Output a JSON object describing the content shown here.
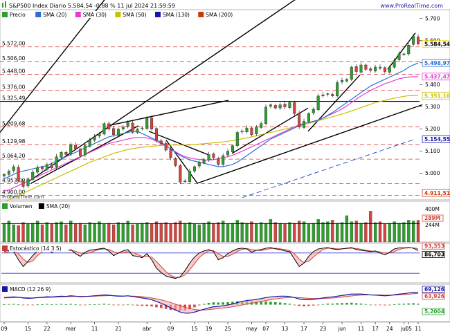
{
  "header": {
    "title": "S&P500 Index Diario 5.584,54 -0,88 % 11 jul 2024 21:59:59",
    "site": "www.ProRealTime.com"
  },
  "watermark": "ProRealTime.com",
  "chart_data": [
    {
      "type": "candlestick",
      "panel": "price",
      "legend": [
        {
          "name": "Precio",
          "color": "#2e9e2e"
        },
        {
          "name": "SMA (20)",
          "color": "#2b6fd6"
        },
        {
          "name": "SMA (30)",
          "color": "#e83ad2"
        },
        {
          "name": "SMA (50)",
          "color": "#c8c000"
        },
        {
          "name": "SMA (130)",
          "color": "#1616a8"
        },
        {
          "name": "SMA (200)",
          "color": "#c83a0a"
        }
      ],
      "ylim": [
        4880,
        5740
      ],
      "right_ticks": [
        5700,
        5600,
        5500,
        5400,
        5300,
        5200,
        5100,
        5000
      ],
      "right_tick_labels": [
        "5.700",
        "5.600",
        "5.500",
        "5.400",
        "5.300",
        "5.200",
        "5.100",
        "5.000"
      ],
      "left_levels": [
        {
          "value": 5572.0,
          "label": "5.572,00"
        },
        {
          "value": 5506.0,
          "label": "5.506,00"
        },
        {
          "value": 5448.0,
          "label": "5.448,00"
        },
        {
          "value": 5376.0,
          "label": "5.376,00"
        },
        {
          "value": 5325.49,
          "label": "5.325,49"
        },
        {
          "value": 5209.68,
          "label": "5.209,68"
        },
        {
          "value": 5129.98,
          "label": "5.129,98"
        },
        {
          "value": 5064.2,
          "label": "5.064,20"
        },
        {
          "value": 4953.0,
          "label": "4.953,00"
        },
        {
          "value": 4900.0,
          "label": "4.900,00"
        }
      ],
      "badges": [
        {
          "value": 5584.54,
          "label": "5.584,54",
          "color": "#f5d200"
        },
        {
          "value": 5498.97,
          "label": "5.498,97",
          "color": "#2b6fd6"
        },
        {
          "value": 5437.47,
          "label": "5.437,47",
          "color": "#e83ad2"
        },
        {
          "value": 5351.1,
          "label": "5.351,10",
          "color": "#c8c000"
        },
        {
          "value": 5154.55,
          "label": "5.154,55",
          "color": "#1616a8"
        },
        {
          "value": 4911.51,
          "label": "4.911,51",
          "color": "#c83a0a"
        }
      ],
      "close": [
        4995,
        5010,
        5030,
        4965,
        4940,
        4975,
        5005,
        5025,
        5020,
        5040,
        5025,
        5075,
        5095,
        5085,
        5130,
        5110,
        5080,
        5125,
        5150,
        5165,
        5180,
        5225,
        5200,
        5175,
        5200,
        5210,
        5230,
        5185,
        5200,
        5205,
        5250,
        5200,
        5150,
        5135,
        5105,
        5070,
        5035,
        4960,
        4965,
        5010,
        5030,
        5050,
        5060,
        5085,
        5070,
        5040,
        5080,
        5100,
        5125,
        5185,
        5190,
        5205,
        5175,
        5210,
        5225,
        5300,
        5310,
        5295,
        5310,
        5300,
        5320,
        5270,
        5210,
        5235,
        5270,
        5290,
        5350,
        5355,
        5360,
        5350,
        5410,
        5420,
        5425,
        5480,
        5460,
        5490,
        5470,
        5465,
        5480,
        5475,
        5460,
        5480,
        5510,
        5540,
        5540,
        5580,
        5620,
        5585
      ],
      "sma20": [
        4975,
        4985,
        4995,
        5005,
        5010,
        5015,
        5020,
        5025,
        5030,
        5035,
        5045,
        5055,
        5065,
        5075,
        5085,
        5095,
        5105,
        5115,
        5125,
        5135,
        5145,
        5155,
        5165,
        5170,
        5175,
        5180,
        5185,
        5190,
        5190,
        5180,
        5170,
        5160,
        5150,
        5140,
        5125,
        5110,
        5095,
        5080,
        5070,
        5060,
        5055,
        5050,
        5045,
        5040,
        5035,
        5030,
        5030,
        5035,
        5040,
        5050,
        5065,
        5080,
        5095,
        5110,
        5125,
        5140,
        5155,
        5165,
        5175,
        5185,
        5195,
        5205,
        5215,
        5225,
        5230,
        5235,
        5240,
        5250,
        5262,
        5275,
        5290,
        5305,
        5320,
        5335,
        5350,
        5365,
        5380,
        5395,
        5405,
        5415,
        5425,
        5435,
        5445,
        5455,
        5465,
        5480,
        5490,
        5499
      ],
      "sma30": [
        4920,
        4925,
        4935,
        4945,
        4955,
        4965,
        4975,
        4985,
        4995,
        5005,
        5015,
        5025,
        5035,
        5045,
        5055,
        5065,
        5075,
        5085,
        5095,
        5105,
        5115,
        5125,
        5135,
        5140,
        5145,
        5150,
        5155,
        5160,
        5162,
        5162,
        5160,
        5155,
        5145,
        5135,
        5125,
        5110,
        5098,
        5085,
        5075,
        5070,
        5065,
        5063,
        5060,
        5060,
        5062,
        5065,
        5070,
        5075,
        5082,
        5090,
        5100,
        5110,
        5120,
        5130,
        5140,
        5150,
        5160,
        5170,
        5180,
        5190,
        5200,
        5210,
        5220,
        5225,
        5230,
        5235,
        5242,
        5250,
        5260,
        5270,
        5280,
        5292,
        5305,
        5320,
        5335,
        5350,
        5362,
        5375,
        5385,
        5395,
        5405,
        5412,
        5420,
        5428,
        5432,
        5435,
        5437,
        5437
      ],
      "sma50": [
        4870,
        4880,
        4890,
        4900,
        4910,
        4920,
        4930,
        4940,
        4950,
        4960,
        4970,
        4980,
        4990,
        5000,
        5010,
        5020,
        5030,
        5040,
        5050,
        5058,
        5066,
        5074,
        5082,
        5090,
        5096,
        5102,
        5108,
        5112,
        5115,
        5118,
        5120,
        5122,
        5124,
        5126,
        5127,
        5128,
        5128,
        5128,
        5128,
        5128,
        5130,
        5132,
        5134,
        5136,
        5138,
        5140,
        5142,
        5145,
        5148,
        5152,
        5156,
        5160,
        5165,
        5170,
        5175,
        5180,
        5185,
        5190,
        5195,
        5200,
        5205,
        5210,
        5215,
        5220,
        5226,
        5232,
        5238,
        5244,
        5250,
        5256,
        5262,
        5268,
        5275,
        5282,
        5290,
        5297,
        5305,
        5312,
        5320,
        5325,
        5330,
        5335,
        5340,
        5344,
        5348,
        5351,
        5351,
        5351
      ]
    },
    {
      "type": "bar",
      "panel": "volume",
      "legend": [
        {
          "name": "Volumen",
          "color": "#2e9e2e"
        },
        {
          "name": "SMA (20)",
          "color": "#000000"
        }
      ],
      "ylim": [
        0,
        450
      ],
      "right_tick_labels": [
        "400M",
        "244M"
      ],
      "badges": [
        {
          "label": "289M",
          "value": 289,
          "color": "#d0453f"
        }
      ],
      "sma_value": 244,
      "values": [
        240,
        280,
        230,
        220,
        260,
        240,
        250,
        280,
        230,
        260,
        240,
        260,
        270,
        230,
        280,
        240,
        250,
        230,
        260,
        250,
        270,
        240,
        250,
        230,
        260,
        250,
        280,
        230,
        240,
        250,
        260,
        240,
        270,
        250,
        260,
        240,
        260,
        280,
        250,
        260,
        240,
        230,
        250,
        270,
        250,
        260,
        280,
        240,
        250,
        290,
        260,
        250,
        270,
        240,
        260,
        250,
        300,
        260,
        250,
        240,
        260,
        250,
        280,
        270,
        240,
        250,
        300,
        260,
        270,
        290,
        250,
        260,
        350,
        270,
        280,
        250,
        260,
        410,
        260,
        270,
        240,
        250,
        270,
        250,
        260,
        290,
        280,
        289
      ]
    },
    {
      "type": "line",
      "panel": "stochastic",
      "legend": [
        {
          "name": "Estocástico (14 3 5)",
          "color": "#000000"
        }
      ],
      "ylim": [
        0,
        100
      ],
      "levels": [
        80,
        20
      ],
      "badges": [
        {
          "label": "93,353",
          "value": 93.353,
          "color": "#d0453f"
        },
        {
          "label": "86,703",
          "value": 86.703,
          "color": "#000000"
        }
      ],
      "k": [
        85,
        88,
        84,
        60,
        40,
        55,
        72,
        86,
        88,
        90,
        82,
        88,
        92,
        85,
        90,
        78,
        70,
        82,
        88,
        90,
        92,
        94,
        86,
        72,
        80,
        86,
        90,
        72,
        70,
        66,
        78,
        60,
        35,
        22,
        12,
        8,
        5,
        10,
        28,
        50,
        68,
        80,
        86,
        90,
        84,
        60,
        66,
        78,
        86,
        92,
        94,
        92,
        82,
        88,
        90,
        94,
        96,
        92,
        90,
        86,
        84,
        62,
        40,
        50,
        70,
        84,
        92,
        94,
        96,
        92,
        90,
        92,
        94,
        96,
        90,
        88,
        86,
        84,
        86,
        80,
        74,
        82,
        92,
        95,
        95,
        96,
        94,
        87
      ],
      "d": [
        80,
        84,
        86,
        78,
        62,
        52,
        56,
        72,
        84,
        88,
        86,
        86,
        88,
        88,
        88,
        85,
        80,
        78,
        80,
        86,
        90,
        92,
        90,
        84,
        80,
        80,
        84,
        82,
        76,
        70,
        70,
        68,
        55,
        40,
        25,
        14,
        8,
        8,
        15,
        30,
        48,
        66,
        78,
        86,
        87,
        78,
        70,
        70,
        76,
        85,
        90,
        93,
        90,
        88,
        87,
        90,
        93,
        94,
        92,
        90,
        87,
        78,
        62,
        52,
        55,
        68,
        80,
        90,
        94,
        94,
        92,
        92,
        93,
        94,
        93,
        91,
        88,
        86,
        85,
        83,
        80,
        80,
        84,
        90,
        94,
        95,
        95,
        93
      ]
    },
    {
      "type": "line",
      "panel": "macd",
      "legend": [
        {
          "name": "MACD (12 26 9)",
          "color": "#1616a8"
        }
      ],
      "badges": [
        {
          "label": "69,126",
          "value": 69.126,
          "color": "#1616a8"
        },
        {
          "label": "63,926",
          "value": 63.926,
          "color": "#d0453f"
        },
        {
          "label": "5,2004",
          "value": 5.2004,
          "color": "#2e9e2e"
        }
      ],
      "ylim": [
        -80,
        100
      ],
      "macd": [
        40,
        42,
        44,
        42,
        38,
        36,
        37,
        40,
        42,
        45,
        44,
        46,
        48,
        47,
        50,
        48,
        45,
        46,
        48,
        50,
        52,
        55,
        54,
        50,
        48,
        48,
        50,
        46,
        42,
        38,
        34,
        28,
        18,
        8,
        -4,
        -18,
        -30,
        -42,
        -48,
        -48,
        -42,
        -34,
        -26,
        -18,
        -12,
        -10,
        -6,
        -2,
        4,
        12,
        18,
        24,
        26,
        30,
        34,
        40,
        44,
        46,
        48,
        48,
        46,
        40,
        32,
        28,
        28,
        30,
        34,
        38,
        42,
        44,
        48,
        52,
        56,
        60,
        60,
        60,
        58,
        55,
        54,
        52,
        50,
        52,
        56,
        60,
        62,
        66,
        70,
        69
      ],
      "signal": [
        38,
        39,
        40,
        41,
        40,
        39,
        38,
        39,
        40,
        41,
        42,
        43,
        44,
        45,
        46,
        47,
        47,
        47,
        47,
        48,
        49,
        50,
        51,
        51,
        50,
        49,
        49,
        48,
        47,
        45,
        42,
        38,
        33,
        27,
        20,
        12,
        3,
        -6,
        -15,
        -22,
        -27,
        -30,
        -30,
        -28,
        -25,
        -22,
        -19,
        -16,
        -12,
        -7,
        -2,
        3,
        8,
        13,
        18,
        23,
        28,
        32,
        36,
        39,
        41,
        41,
        40,
        38,
        36,
        35,
        35,
        35,
        36,
        38,
        40,
        43,
        46,
        49,
        52,
        54,
        55,
        55,
        55,
        55,
        54,
        54,
        54,
        55,
        57,
        59,
        62,
        64
      ]
    }
  ],
  "x_axis": {
    "labels": [
      {
        "i": 0,
        "text": "09"
      },
      {
        "i": 5,
        "text": "15"
      },
      {
        "i": 9,
        "text": "22"
      },
      {
        "i": 14,
        "text": "mar"
      },
      {
        "i": 19,
        "text": "11"
      },
      {
        "i": 24,
        "text": "21"
      },
      {
        "i": 30,
        "text": "abr"
      },
      {
        "i": 35,
        "text": "09"
      },
      {
        "i": 40,
        "text": "15"
      },
      {
        "i": 43,
        "text": "19"
      },
      {
        "i": 47,
        "text": "25"
      },
      {
        "i": 52,
        "text": "may"
      },
      {
        "i": 55,
        "text": "07"
      },
      {
        "i": 59,
        "text": "13"
      },
      {
        "i": 63,
        "text": "17"
      },
      {
        "i": 67,
        "text": "23"
      },
      {
        "i": 71,
        "text": "jun"
      },
      {
        "i": 75,
        "text": "11"
      },
      {
        "i": 78,
        "text": "17"
      },
      {
        "i": 81,
        "text": "24"
      },
      {
        "i": 84,
        "text": "jul"
      },
      {
        "i": 85,
        "text": "05"
      },
      {
        "i": 87,
        "text": "11"
      }
    ]
  }
}
